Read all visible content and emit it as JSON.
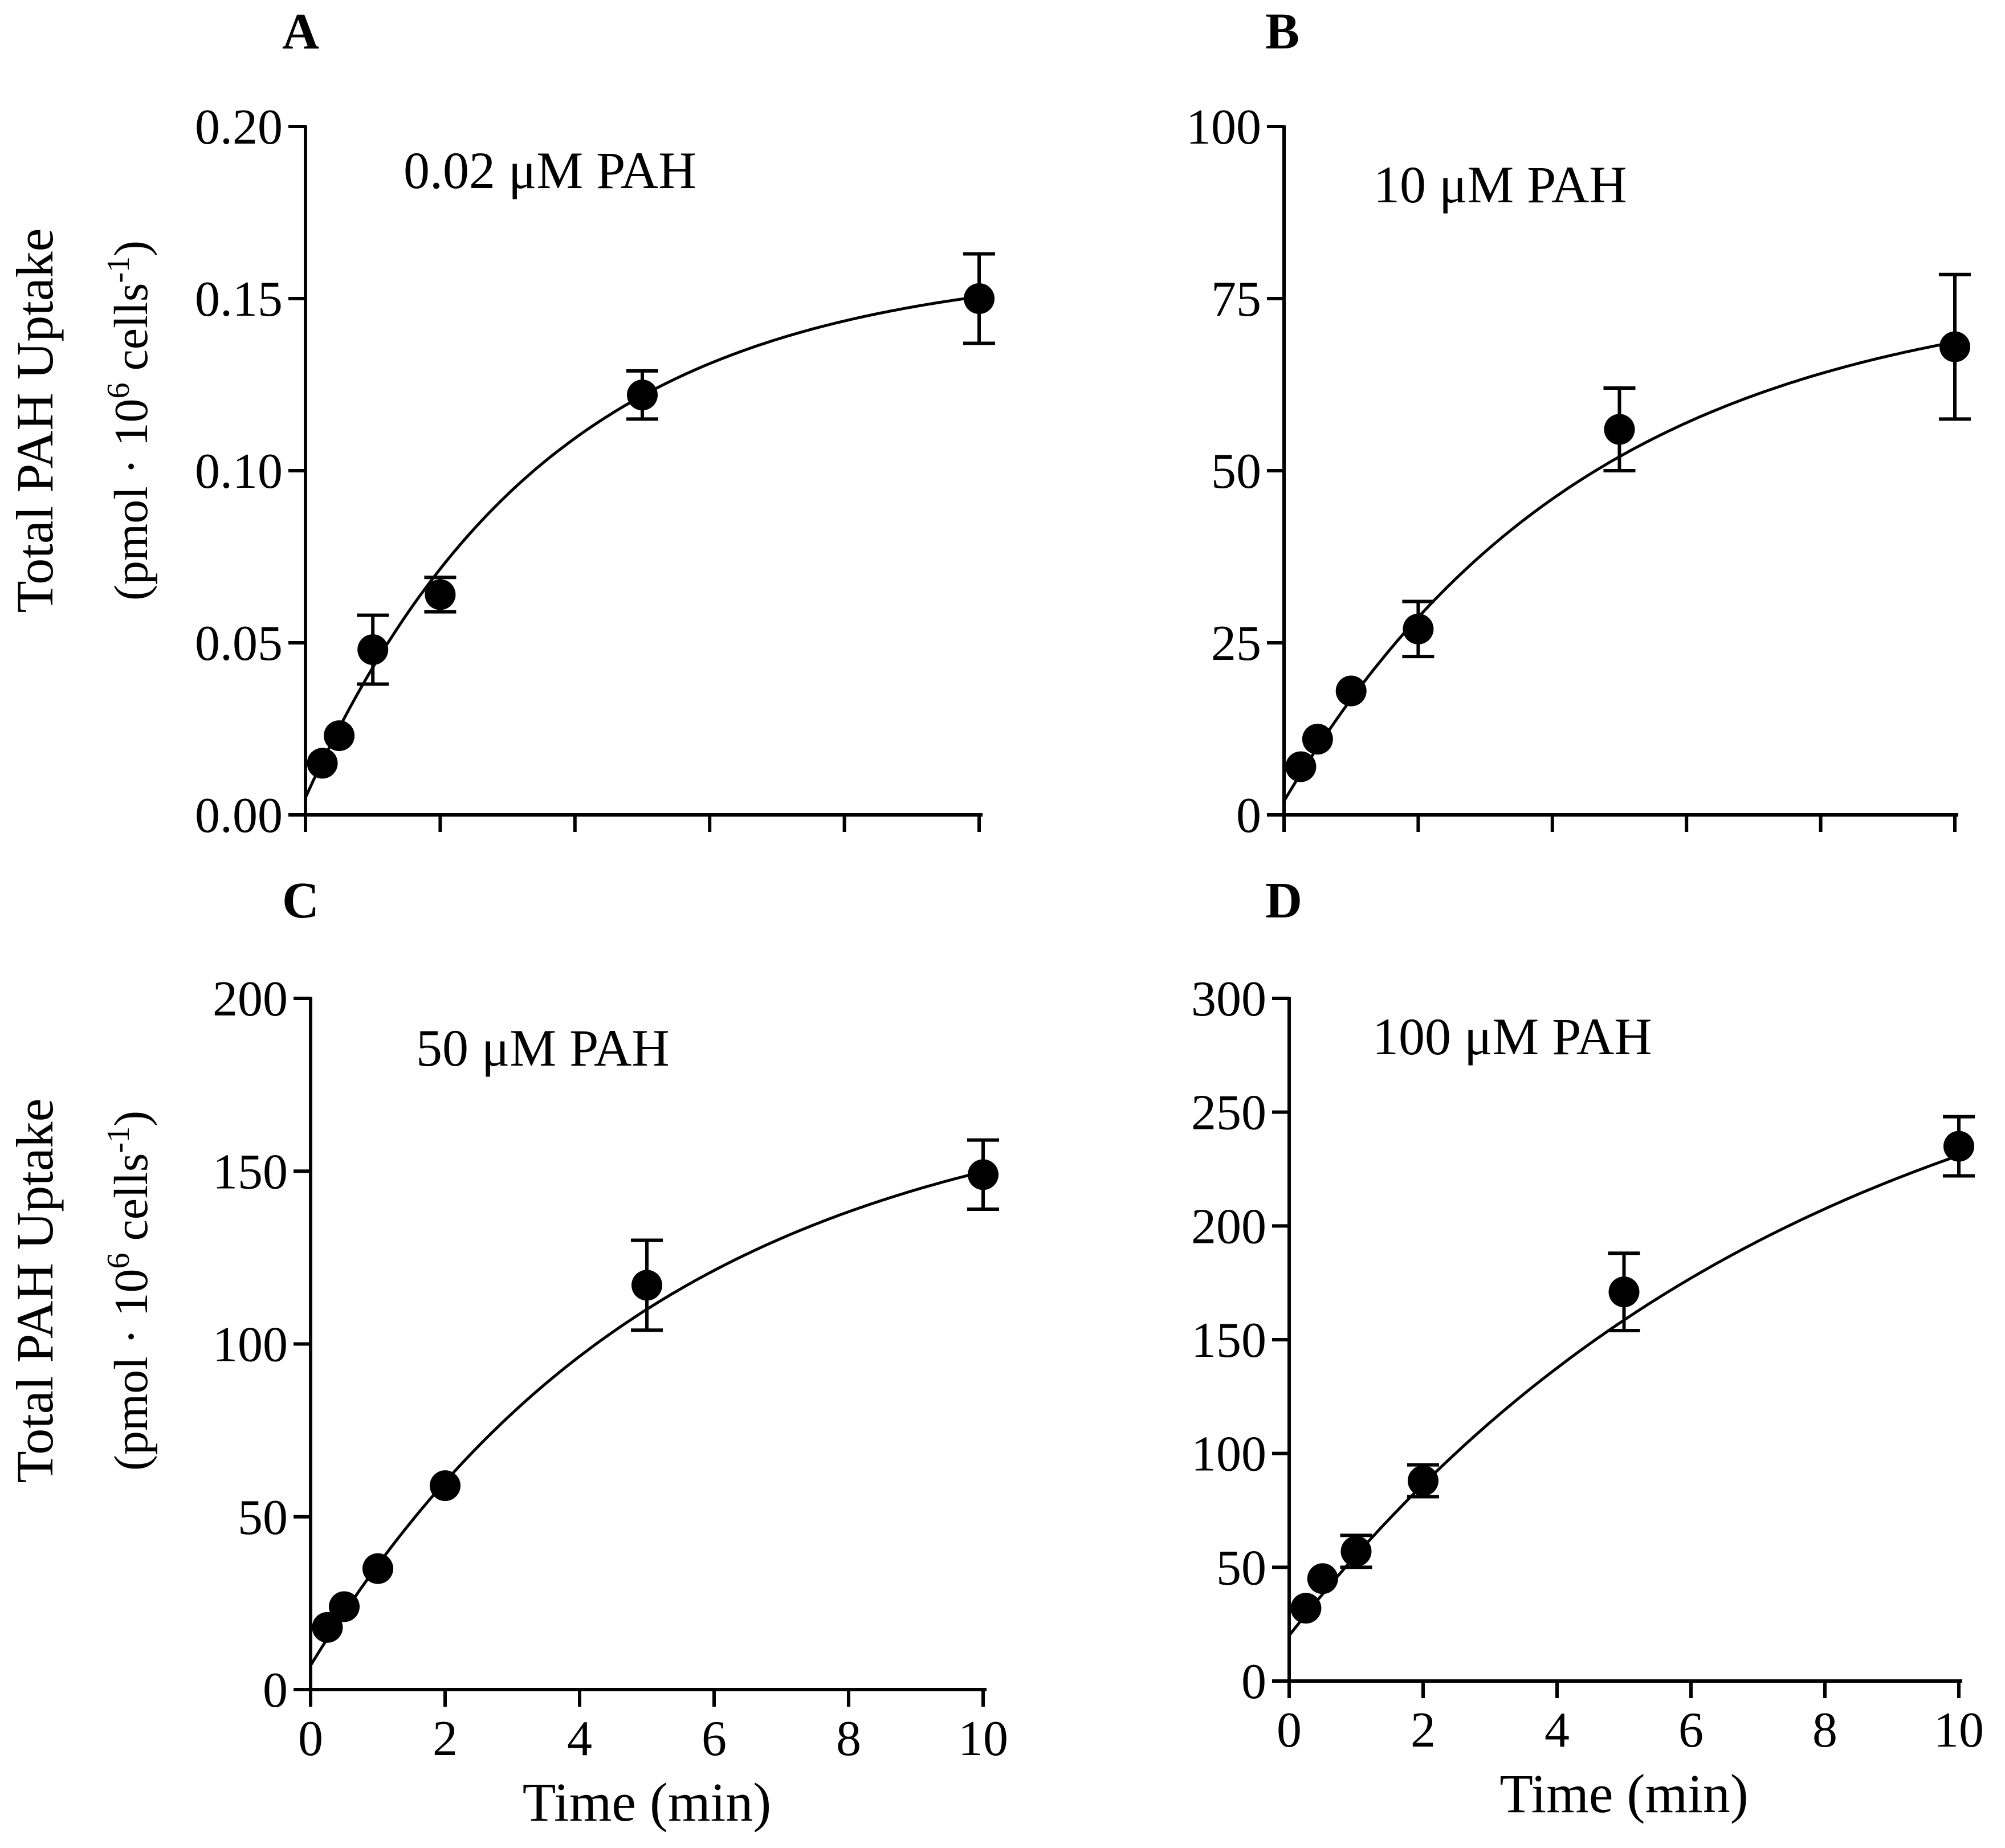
{
  "figure": {
    "shared_ylabel_line1": "Total PAH Uptake",
    "shared_ylabel_line2_prefix": "(pmol · 10",
    "shared_ylabel_line2_sup1": "6",
    "shared_ylabel_line2_mid": " cells",
    "shared_ylabel_line2_sup2": "-1",
    "shared_ylabel_line2_suffix": ")"
  },
  "colors": {
    "ink": "#000000",
    "background": "#ffffff"
  },
  "chart_data": [
    {
      "panel": "A",
      "type": "scatter",
      "title": "0.02 μM PAH",
      "xlabel": "",
      "ylabel": "Total PAH Uptake (pmol · 10^6 cells^-1)",
      "xlim": [
        0,
        10
      ],
      "ylim": [
        0,
        0.2
      ],
      "x_ticks": [
        0,
        2,
        4,
        6,
        8,
        10
      ],
      "x_tick_labels": [],
      "y_ticks": [
        0,
        0.05,
        0.1,
        0.15,
        0.2
      ],
      "y_tick_labels": [
        "0.00",
        "0.05",
        "0.10",
        "0.15",
        "0.20"
      ],
      "grid": false,
      "points": [
        {
          "x": 0.25,
          "y": 0.015,
          "err": 0
        },
        {
          "x": 0.5,
          "y": 0.023,
          "err": 0
        },
        {
          "x": 1,
          "y": 0.048,
          "err": 0.01
        },
        {
          "x": 2,
          "y": 0.064,
          "err": 0.005
        },
        {
          "x": 5,
          "y": 0.122,
          "err": 0.007
        },
        {
          "x": 10,
          "y": 0.15,
          "err": 0.013
        }
      ],
      "fit": {
        "model": "one-phase association",
        "y0": 0.005,
        "plateau": 0.16,
        "k": 0.28
      }
    },
    {
      "panel": "B",
      "type": "scatter",
      "title": "10 μM PAH",
      "xlabel": "",
      "ylabel": "",
      "xlim": [
        0,
        10
      ],
      "ylim": [
        0,
        100
      ],
      "x_ticks": [
        0,
        2,
        4,
        6,
        8,
        10
      ],
      "x_tick_labels": [],
      "y_ticks": [
        0,
        25,
        50,
        75,
        100
      ],
      "y_tick_labels": [
        "0",
        "25",
        "50",
        "75",
        "100"
      ],
      "grid": false,
      "points": [
        {
          "x": 0.25,
          "y": 7,
          "err": 0
        },
        {
          "x": 0.5,
          "y": 11,
          "err": 0
        },
        {
          "x": 1,
          "y": 18,
          "err": 0
        },
        {
          "x": 2,
          "y": 27,
          "err": 4
        },
        {
          "x": 5,
          "y": 56,
          "err": 6
        },
        {
          "x": 10,
          "y": 68,
          "err": 10.5
        }
      ],
      "fit": {
        "model": "one-phase association",
        "y0": 2,
        "plateau": 77,
        "k": 0.22
      }
    },
    {
      "panel": "C",
      "type": "scatter",
      "title": "50 μM PAH",
      "xlabel": "Time (min)",
      "ylabel": "Total PAH Uptake (pmol · 10^6 cells^-1)",
      "xlim": [
        0,
        10
      ],
      "ylim": [
        0,
        200
      ],
      "x_ticks": [
        0,
        2,
        4,
        6,
        8,
        10
      ],
      "x_tick_labels": [
        "0",
        "2",
        "4",
        "6",
        "8",
        "10"
      ],
      "y_ticks": [
        0,
        50,
        100,
        150,
        200
      ],
      "y_tick_labels": [
        "0",
        "50",
        "100",
        "150",
        "200"
      ],
      "grid": false,
      "points": [
        {
          "x": 0.25,
          "y": 18,
          "err": 0
        },
        {
          "x": 0.5,
          "y": 24,
          "err": 0
        },
        {
          "x": 1,
          "y": 35,
          "err": 0
        },
        {
          "x": 2,
          "y": 59,
          "err": 0
        },
        {
          "x": 5,
          "y": 117,
          "err": 13
        },
        {
          "x": 10,
          "y": 149,
          "err": 10
        }
      ],
      "fit": {
        "model": "one-phase association",
        "y0": 7,
        "plateau": 175,
        "k": 0.19
      }
    },
    {
      "panel": "D",
      "type": "scatter",
      "title": "100 μM PAH",
      "xlabel": "Time (min)",
      "ylabel": "",
      "xlim": [
        0,
        10
      ],
      "ylim": [
        0,
        300
      ],
      "x_ticks": [
        0,
        2,
        4,
        6,
        8,
        10
      ],
      "x_tick_labels": [
        "0",
        "2",
        "4",
        "6",
        "8",
        "10"
      ],
      "y_ticks": [
        0,
        50,
        100,
        150,
        200,
        250,
        300
      ],
      "y_tick_labels": [
        "0",
        "50",
        "100",
        "150",
        "200",
        "250",
        "300"
      ],
      "grid": false,
      "points": [
        {
          "x": 0.25,
          "y": 32,
          "err": 0
        },
        {
          "x": 0.5,
          "y": 45,
          "err": 0
        },
        {
          "x": 1,
          "y": 57,
          "err": 7
        },
        {
          "x": 2,
          "y": 88,
          "err": 7
        },
        {
          "x": 5,
          "y": 171,
          "err": 17
        },
        {
          "x": 10,
          "y": 235,
          "err": 13
        }
      ],
      "fit": {
        "model": "one-phase association",
        "y0": 20,
        "plateau": 310,
        "k": 0.13
      }
    }
  ]
}
